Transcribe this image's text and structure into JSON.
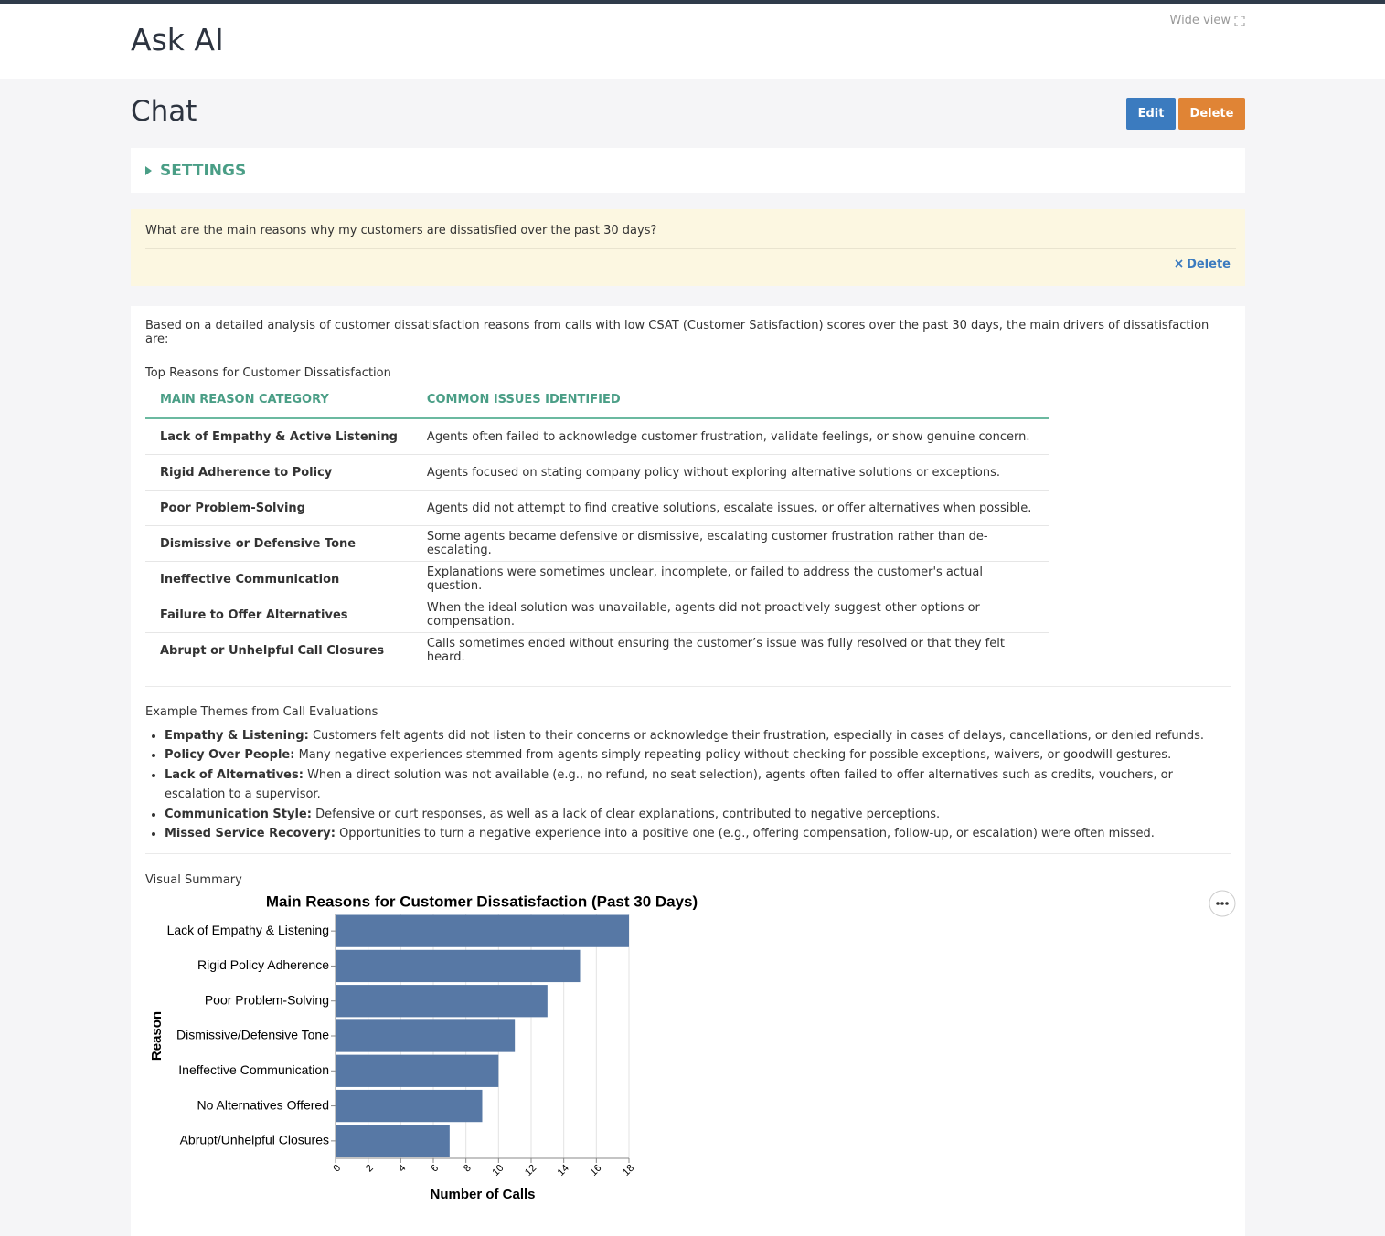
{
  "header": {
    "title": "Ask AI",
    "wide_view": "Wide view"
  },
  "page": {
    "title": "Chat",
    "edit": "Edit",
    "delete": "Delete"
  },
  "settings": {
    "label": "SETTINGS"
  },
  "question": {
    "text": "What are the main reasons why my customers are dissatisfied over the past 30 days?",
    "delete": "Delete"
  },
  "answer": {
    "intro": "Based on a detailed analysis of customer dissatisfaction reasons from calls with low CSAT (Customer Satisfaction) scores over the past 30 days, the main drivers of dissatisfaction are:",
    "table_title": "Top Reasons for Customer Dissatisfaction",
    "table": {
      "headers": [
        "MAIN REASON CATEGORY",
        "COMMON ISSUES IDENTIFIED"
      ],
      "rows": [
        [
          "Lack of Empathy & Active Listening",
          "Agents often failed to acknowledge customer frustration, validate feelings, or show genuine concern."
        ],
        [
          "Rigid Adherence to Policy",
          "Agents focused on stating company policy without exploring alternative solutions or exceptions."
        ],
        [
          "Poor Problem-Solving",
          "Agents did not attempt to find creative solutions, escalate issues, or offer alternatives when possible."
        ],
        [
          "Dismissive or Defensive Tone",
          "Some agents became defensive or dismissive, escalating customer frustration rather than de-escalating."
        ],
        [
          "Ineffective Communication",
          "Explanations were sometimes unclear, incomplete, or failed to address the customer's actual question."
        ],
        [
          "Failure to Offer Alternatives",
          "When the ideal solution was unavailable, agents did not proactively suggest other options or compensation."
        ],
        [
          "Abrupt or Unhelpful Call Closures",
          "Calls sometimes ended without ensuring the customer’s issue was fully resolved or that they felt heard."
        ]
      ]
    },
    "themes_title": "Example Themes from Call Evaluations",
    "themes": [
      {
        "term": "Empathy & Listening:",
        "text": "Customers felt agents did not listen to their concerns or acknowledge their frustration, especially in cases of delays, cancellations, or denied refunds."
      },
      {
        "term": "Policy Over People:",
        "text": "Many negative experiences stemmed from agents simply repeating policy without checking for possible exceptions, waivers, or goodwill gestures."
      },
      {
        "term": "Lack of Alternatives:",
        "text": "When a direct solution was not available (e.g., no refund, no seat selection), agents often failed to offer alternatives such as credits, vouchers, or escalation to a supervisor."
      },
      {
        "term": "Communication Style:",
        "text": "Defensive or curt responses, as well as a lack of clear explanations, contributed to negative perceptions."
      },
      {
        "term": "Missed Service Recovery:",
        "text": "Opportunities to turn a negative experience into a positive one (e.g., offering compensation, follow-up, or escalation) were often missed."
      }
    ],
    "visual_title": "Visual Summary"
  },
  "chart_data": {
    "type": "hbar",
    "title": "Main Reasons for Customer Dissatisfaction (Past 30 Days)",
    "x_label": "Number of Calls",
    "y_label": "Reason",
    "categories": [
      "Lack of Empathy & Listening",
      "Rigid Policy Adherence",
      "Poor Problem-Solving",
      "Dismissive/Defensive Tone",
      "Ineffective Communication",
      "No Alternatives Offered",
      "Abrupt/Unhelpful Closures"
    ],
    "values": [
      18,
      15,
      13,
      11,
      10,
      9,
      7
    ],
    "color": "#5778a5",
    "xlim": [
      0,
      18
    ],
    "xticks": [
      0,
      2,
      4,
      6,
      8,
      10,
      12,
      14,
      16,
      18
    ],
    "grid": true
  }
}
